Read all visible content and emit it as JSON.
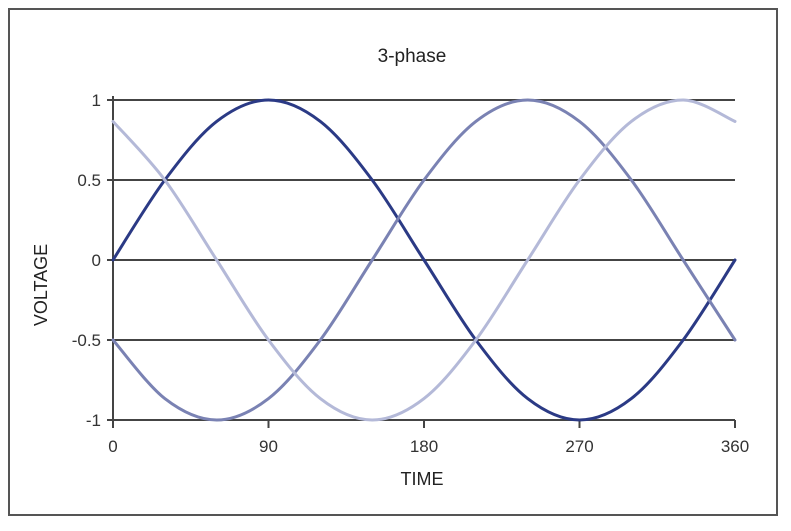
{
  "chart_data": {
    "type": "line",
    "title": "3-phase",
    "xlabel": "TIME",
    "ylabel": "VOLTAGE",
    "xlim": [
      0,
      360
    ],
    "ylim": [
      -1,
      1
    ],
    "x_ticks": [
      0,
      90,
      180,
      270,
      360
    ],
    "x_tick_labels": [
      "0",
      "90",
      "180",
      "270",
      "360"
    ],
    "y_ticks": [
      1,
      0.5,
      0,
      -0.5,
      -1
    ],
    "y_tick_labels": [
      "1",
      "0.5",
      "0",
      "-0.5",
      "-1"
    ],
    "grid": "horizontal",
    "series": [
      {
        "color": "#2b3a85",
        "x": [
          0,
          30,
          60,
          90,
          120,
          150,
          180,
          210,
          240,
          270,
          300,
          330,
          360
        ],
        "values": [
          0,
          0.5,
          0.866,
          1,
          0.866,
          0.5,
          0,
          -0.5,
          -0.866,
          -1,
          -0.866,
          -0.5,
          0
        ]
      },
      {
        "color": "#7a82b3",
        "x": [
          0,
          30,
          60,
          90,
          120,
          150,
          180,
          210,
          240,
          270,
          300,
          330,
          360
        ],
        "values": [
          -0.5,
          -0.866,
          -1,
          -0.866,
          -0.5,
          0,
          0.5,
          0.866,
          1,
          0.866,
          0.5,
          0,
          -0.5
        ]
      },
      {
        "color": "#b4b9d8",
        "x": [
          0,
          30,
          60,
          90,
          120,
          150,
          180,
          210,
          240,
          270,
          300,
          330,
          360
        ],
        "values": [
          0.866,
          0.5,
          0,
          -0.5,
          -0.866,
          -1,
          -0.866,
          -0.5,
          0,
          0.5,
          0.866,
          1,
          0.866
        ]
      }
    ]
  }
}
